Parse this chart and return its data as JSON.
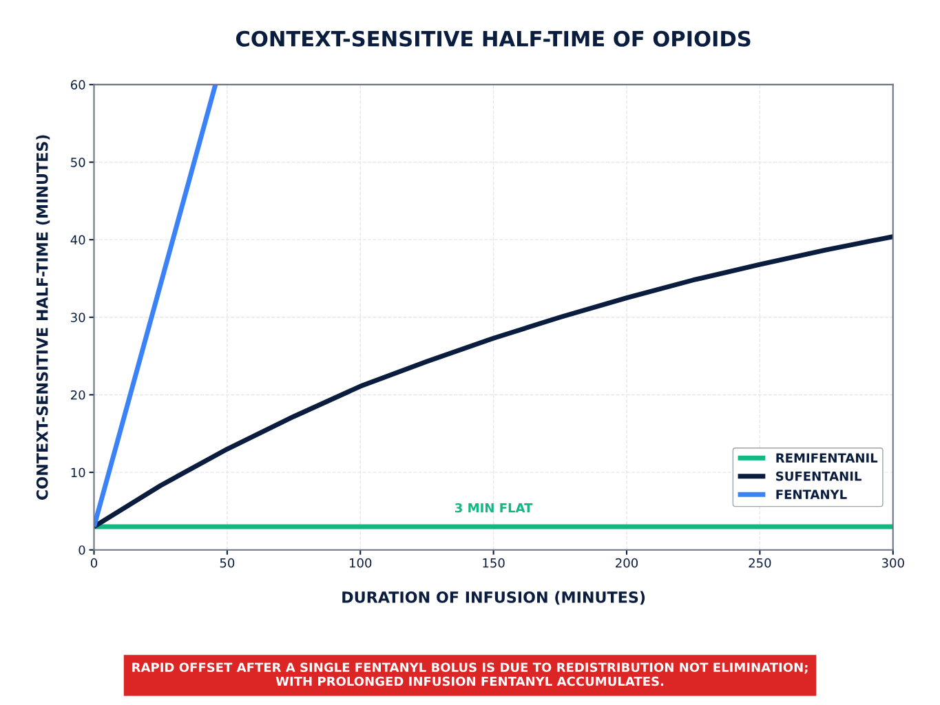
{
  "chart_data": {
    "type": "line",
    "title": "CONTEXT-SENSITIVE HALF-TIME OF OPIOIDS",
    "xlabel": "DURATION OF INFUSION (MINUTES)",
    "ylabel": "CONTEXT-SENSITIVE HALF-TIME (MINUTES)",
    "series": [
      {
        "name": "REMIFENTANIL",
        "color": "#10b981",
        "x": [
          0,
          300
        ],
        "values": [
          3,
          3
        ]
      },
      {
        "name": "SUFENTANIL",
        "color": "#0b1d3f",
        "x": [
          0,
          25,
          50,
          75,
          100,
          125,
          150,
          175,
          200,
          225,
          250,
          275,
          300
        ],
        "values": [
          3,
          8.3,
          13,
          17.2,
          21.1,
          24.3,
          27.3,
          30,
          32.5,
          34.8,
          36.8,
          38.7,
          40.4
        ]
      },
      {
        "name": "FENTANYL",
        "color": "#3b82f6",
        "x": [
          0,
          45.6
        ],
        "values": [
          3,
          60
        ]
      }
    ],
    "annotations": [
      "3 MIN FLAT",
      "RAPID OFFSET AFTER A SINGLE FENTANYL BOLUS IS DUE TO REDISTRIBUTION NOT ELIMINATION;\nWITH PROLONGED INFUSION FENTANYL ACCUMULATES."
    ],
    "xlim": [
      0,
      300
    ],
    "xticks": [
      0,
      50,
      100,
      150,
      200,
      250,
      300
    ],
    "ylim": [
      0,
      60
    ],
    "yticks": [
      0,
      10,
      20,
      30,
      40,
      50,
      60
    ],
    "grid": true,
    "legend": "bottom right",
    "marker": "none",
    "line_style": "solid"
  }
}
